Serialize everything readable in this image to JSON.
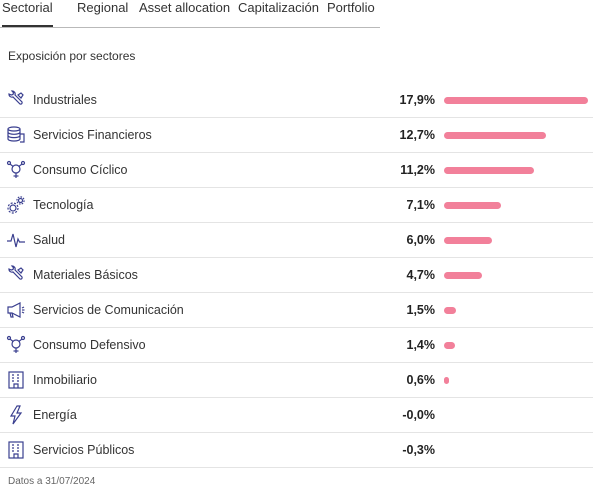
{
  "tabs": [
    {
      "label": "Sectorial",
      "active": true
    },
    {
      "label": "Regional",
      "active": false
    },
    {
      "label": "Asset allocation",
      "active": false
    },
    {
      "label": "Capitalización",
      "active": false
    },
    {
      "label": "Portfolio",
      "active": false
    }
  ],
  "section_title": "Exposición por sectores",
  "bar_color": "#f2809a",
  "icon_color": "#3a3f8f",
  "sectors": [
    {
      "label": "Industriales",
      "value": "17,9%",
      "pct": 17.9,
      "icon": "wrench-icon"
    },
    {
      "label": "Servicios Financieros",
      "value": "12,7%",
      "pct": 12.7,
      "icon": "coins-icon"
    },
    {
      "label": "Consumo Cíclico",
      "value": "11,2%",
      "pct": 11.2,
      "icon": "network-icon"
    },
    {
      "label": "Tecnología",
      "value": "7,1%",
      "pct": 7.1,
      "icon": "gears-icon"
    },
    {
      "label": "Salud",
      "value": "6,0%",
      "pct": 6.0,
      "icon": "pulse-icon"
    },
    {
      "label": "Materiales Básicos",
      "value": "4,7%",
      "pct": 4.7,
      "icon": "wrench-icon"
    },
    {
      "label": "Servicios de Comunicación",
      "value": "1,5%",
      "pct": 1.5,
      "icon": "megaphone-icon"
    },
    {
      "label": "Consumo Defensivo",
      "value": "1,4%",
      "pct": 1.4,
      "icon": "network-icon"
    },
    {
      "label": "Inmobiliario",
      "value": "0,6%",
      "pct": 0.6,
      "icon": "building-icon"
    },
    {
      "label": "Energía",
      "value": "-0,0%",
      "pct": 0.0,
      "icon": "lightning-icon"
    },
    {
      "label": "Servicios Públicos",
      "value": "-0,3%",
      "pct": -0.3,
      "icon": "building-icon"
    }
  ],
  "footnote": "Datos a 31/07/2024"
}
